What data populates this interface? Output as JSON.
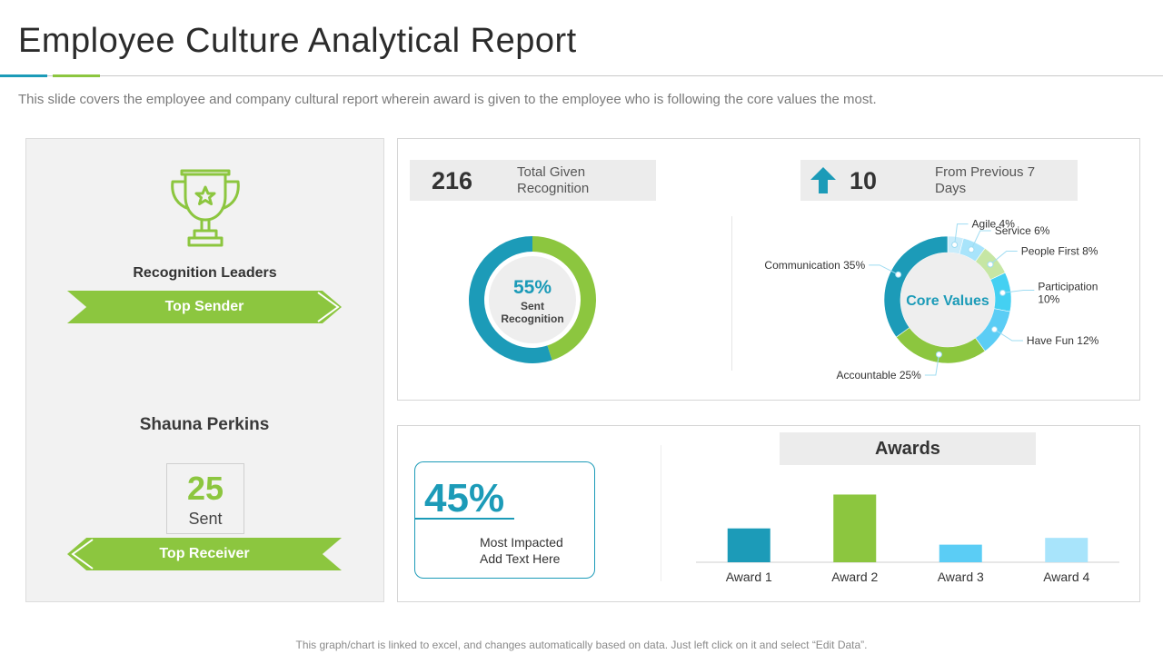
{
  "header": {
    "title": "Employee Culture Analytical Report",
    "subtitle": "This slide covers the employee and company cultural report wherein award is given to the employee who is following the core values the most."
  },
  "leaders": {
    "title": "Recognition Leaders",
    "top_sender_label": "Top Sender",
    "person_name": "Shauna Perkins",
    "sent_count": "25",
    "sent_label": "Sent",
    "top_receiver_label": "Top Receiver"
  },
  "recognition": {
    "total_value": "216",
    "total_label": "Total Given Recognition",
    "prev_value": "10",
    "prev_label": "From Previous 7 Days"
  },
  "impact": {
    "percent": "45%",
    "label_line1": "Most Impacted",
    "label_line2": "Add Text Here"
  },
  "awards_title": "Awards",
  "colors": {
    "teal": "#1c9bb8",
    "green": "#8cc63f",
    "light_blue": "#5bcdf5",
    "pale_blue": "#a8e4fb",
    "pale_green": "#c6e6a4",
    "track": "#ededed"
  },
  "footnote": "This graph/chart is linked to excel, and changes automatically based on data. Just left click on it and select “Edit Data”.",
  "chart_data": [
    {
      "type": "pie",
      "title": "Sent Recognition",
      "center_value": "55%",
      "center_label": "Sent Recognition",
      "slices": [
        {
          "name": "Sent Recognition",
          "value": 55,
          "color": "#1c9bb8"
        },
        {
          "name": "Other",
          "value": 45,
          "color": "#8cc63f"
        }
      ]
    },
    {
      "type": "pie",
      "title": "Core Values",
      "center_label": "Core Values",
      "slices": [
        {
          "name": "Agile",
          "value": 4,
          "label": "Agile 4%",
          "color": "#c8ecfb"
        },
        {
          "name": "Service",
          "value": 6,
          "label": "Service 6%",
          "color": "#a8e4fb"
        },
        {
          "name": "People First",
          "value": 8,
          "label": "People First 8%",
          "color": "#c6e6a4"
        },
        {
          "name": "Participation",
          "value": 10,
          "label": "Participation 10%",
          "color": "#44d0f2"
        },
        {
          "name": "Have Fun",
          "value": 12,
          "label": "Have Fun 12%",
          "color": "#5bcdf5"
        },
        {
          "name": "Accountable",
          "value": 25,
          "label": "Accountable 25%",
          "color": "#8cc63f"
        },
        {
          "name": "Communication",
          "value": 35,
          "label": "Communication 35%",
          "color": "#1c9bb8"
        }
      ]
    },
    {
      "type": "bar",
      "title": "Awards",
      "categories": [
        "Award 1",
        "Award 2",
        "Award 3",
        "Award 4"
      ],
      "values": [
        2.5,
        5,
        1.3,
        1.8
      ],
      "colors": [
        "#1c9bb8",
        "#8cc63f",
        "#5bcdf5",
        "#a8e4fb"
      ],
      "ylim": [
        0,
        5.5
      ]
    }
  ]
}
